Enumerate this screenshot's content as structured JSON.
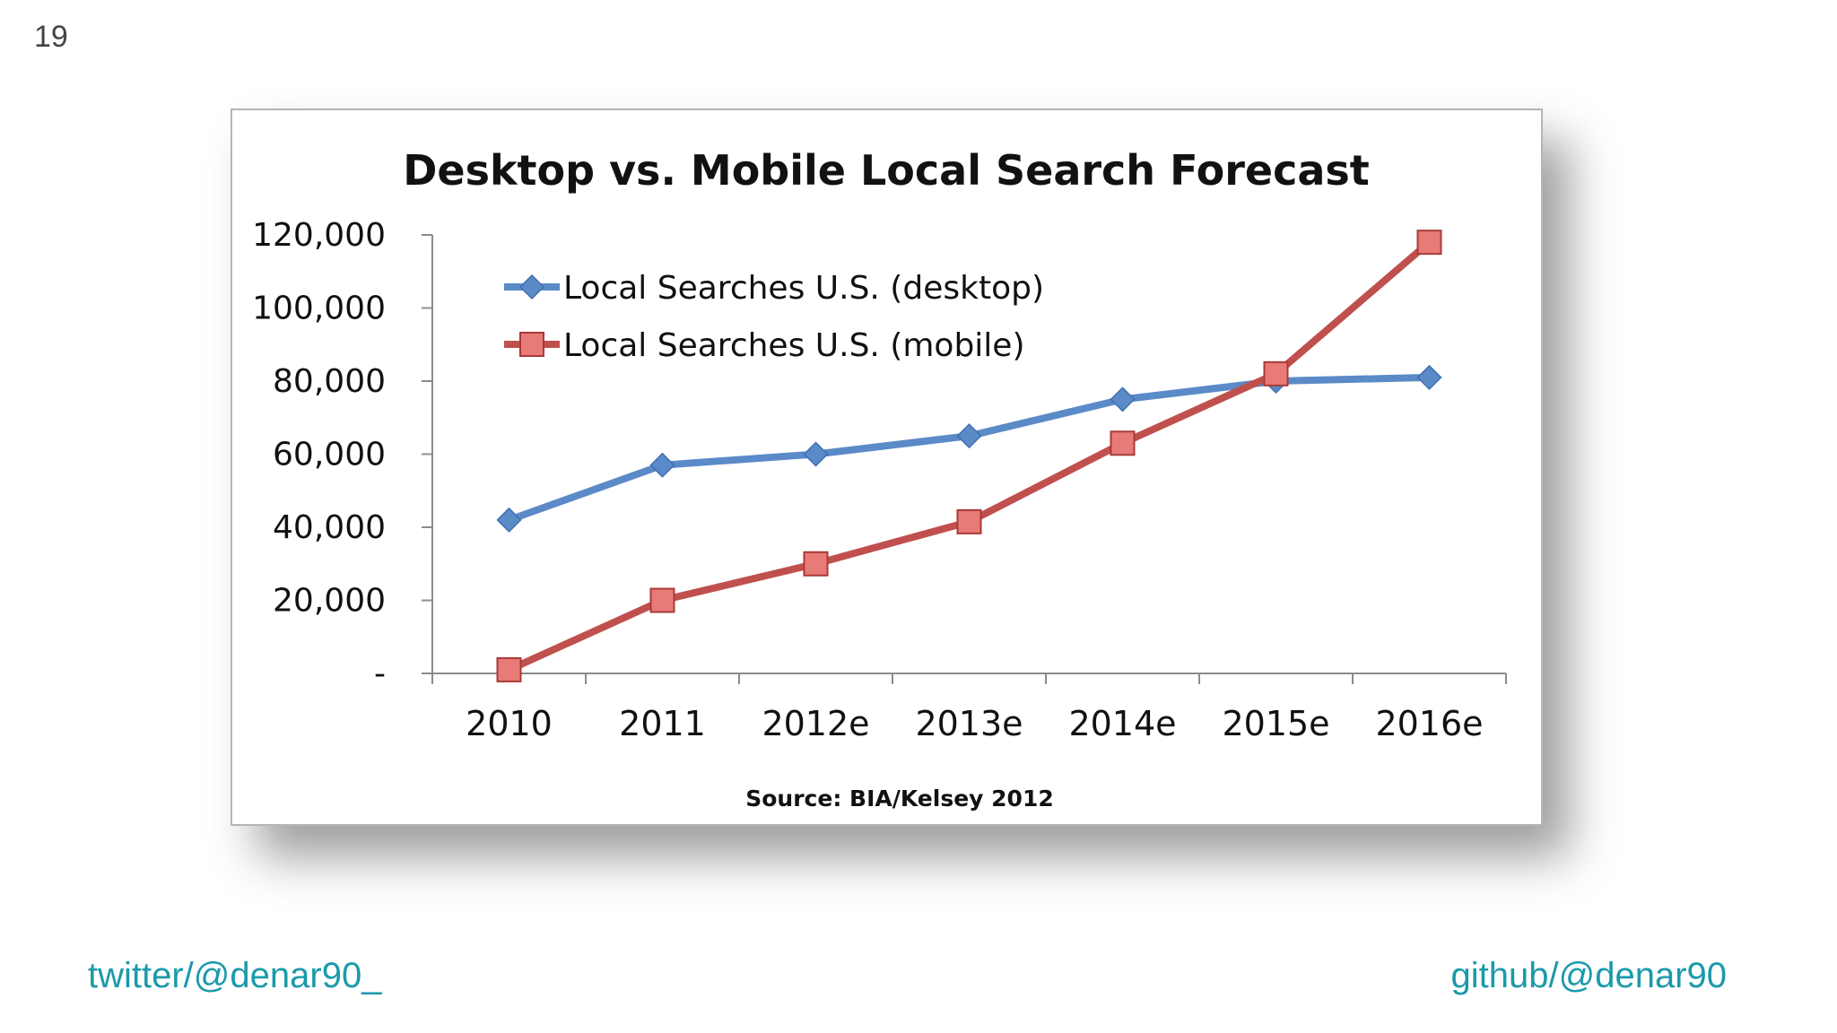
{
  "slide": {
    "number": "19",
    "twitter": "twitter/@denar90_",
    "github": "github/@denar90"
  },
  "colors": {
    "desktop": "#5b8ac8",
    "mobile": "#c0504d",
    "mobile_marker": "#e87b78",
    "accent": "#1a9aaa"
  },
  "chart_data": {
    "type": "line",
    "title": "Desktop vs. Mobile Local Search Forecast",
    "source": "Source: BIA/Kelsey 2012",
    "categories": [
      "2010",
      "2011",
      "2012e",
      "2013e",
      "2014e",
      "2015e",
      "2016e"
    ],
    "y_ticks": [
      {
        "value": 0,
        "label": "-"
      },
      {
        "value": 20000,
        "label": "20,000"
      },
      {
        "value": 40000,
        "label": "40,000"
      },
      {
        "value": 60000,
        "label": "60,000"
      },
      {
        "value": 80000,
        "label": "80,000"
      },
      {
        "value": 100000,
        "label": "100,000"
      },
      {
        "value": 120000,
        "label": "120,000"
      }
    ],
    "ylim": [
      0,
      120000
    ],
    "legend_position": "top-left",
    "series": [
      {
        "name": "Local Searches U.S. (desktop)",
        "marker": "diamond",
        "values": [
          42000,
          57000,
          60000,
          65000,
          75000,
          80000,
          81000
        ]
      },
      {
        "name": "Local Searches U.S. (mobile)",
        "marker": "square",
        "values": [
          1000,
          20000,
          30000,
          41500,
          63000,
          82000,
          118000
        ]
      }
    ]
  }
}
